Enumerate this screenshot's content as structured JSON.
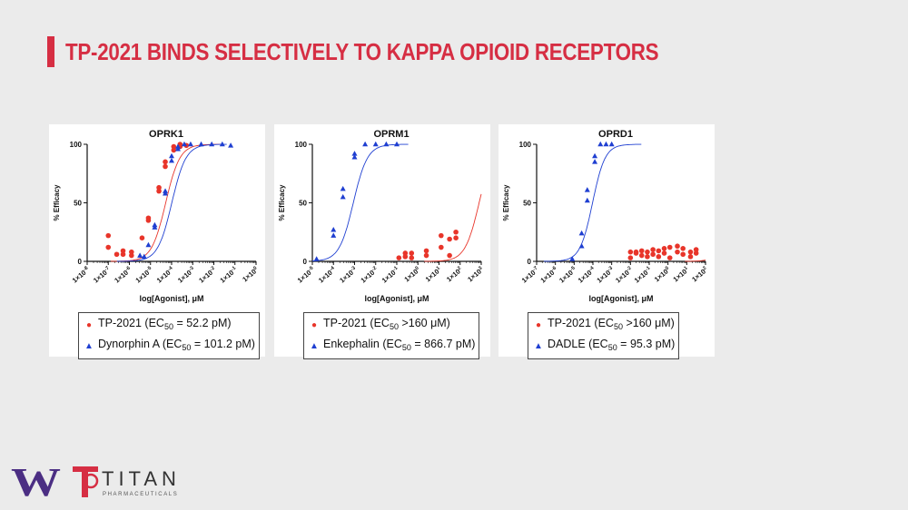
{
  "slide": {
    "title": "TP-2021 BINDS SELECTIVELY TO KAPPA OPIOID RECEPTORS"
  },
  "logos": {
    "uw_letter": "W",
    "titan_word": "TITAN",
    "titan_sub": "PHARMACEUTICALS"
  },
  "colors": {
    "red": "#e8352a",
    "blue": "#1f3fd1",
    "accent": "#d62e43"
  },
  "chart_data": [
    {
      "type": "scatter",
      "title": "OPRK1",
      "xlabel": "log[Agonist], μM",
      "ylabel": "% Efficacy",
      "x_scale": "log",
      "x_tick_exponents": [
        -8,
        -7,
        -6,
        -5,
        -4,
        -3,
        -2,
        -1,
        0
      ],
      "y_ticks": [
        0,
        50,
        100
      ],
      "ylim": [
        0,
        100
      ],
      "series": [
        {
          "name": "TP-2021",
          "legend_prefix": "TP-2021 (EC",
          "legend_suffix": " = 52.2 pM)",
          "color": "#e8352a",
          "marker": "circle",
          "ec50_log": -4.28,
          "hill": 1.3,
          "points": [
            [
              -7,
              22
            ],
            [
              -7,
              12
            ],
            [
              -6.6,
              6
            ],
            [
              -6.3,
              9
            ],
            [
              -6.3,
              6
            ],
            [
              -5.9,
              8
            ],
            [
              -5.9,
              5
            ],
            [
              -5.4,
              20
            ],
            [
              -5.1,
              35
            ],
            [
              -5.1,
              37
            ],
            [
              -4.6,
              60
            ],
            [
              -4.6,
              63
            ],
            [
              -4.3,
              81
            ],
            [
              -4.3,
              85
            ],
            [
              -3.9,
              95
            ],
            [
              -3.9,
              98
            ],
            [
              -3.6,
              100
            ],
            [
              -3.6,
              98
            ],
            [
              -3.3,
              99
            ]
          ]
        },
        {
          "name": "Dynorphin A",
          "legend_prefix": "Dynorphin A (EC",
          "legend_suffix": " = 101.2 pM)",
          "color": "#1f3fd1",
          "marker": "triangle",
          "ec50_log": -3.99,
          "hill": 1.3,
          "points": [
            [
              -5.5,
              5
            ],
            [
              -5.3,
              4
            ],
            [
              -5.1,
              14
            ],
            [
              -4.8,
              29
            ],
            [
              -4.8,
              31
            ],
            [
              -4.3,
              58
            ],
            [
              -4.3,
              60
            ],
            [
              -4.0,
              90
            ],
            [
              -4.0,
              86
            ],
            [
              -3.7,
              96
            ],
            [
              -3.7,
              98
            ],
            [
              -3.4,
              100
            ],
            [
              -3.1,
              100
            ],
            [
              -2.6,
              100
            ],
            [
              -2.1,
              100
            ],
            [
              -1.6,
              100
            ],
            [
              -1.2,
              99
            ]
          ]
        }
      ]
    },
    {
      "type": "scatter",
      "title": "OPRM1",
      "xlabel": "log[Agonist], μM",
      "ylabel": "% Efficacy",
      "x_scale": "log",
      "x_tick_exponents": [
        -5,
        -4,
        -3,
        -2,
        -1,
        0,
        1,
        2,
        3
      ],
      "y_ticks": [
        0,
        50,
        100
      ],
      "ylim": [
        0,
        100
      ],
      "series": [
        {
          "name": "TP-2021",
          "legend_prefix": "TP-2021 (EC",
          "legend_suffix": " >160 μM)",
          "color": "#e8352a",
          "marker": "circle",
          "ec50_log": 2.9,
          "hill": 1.3,
          "points": [
            [
              -0.9,
              3
            ],
            [
              -0.6,
              7
            ],
            [
              -0.6,
              4
            ],
            [
              -0.3,
              7
            ],
            [
              -0.3,
              3
            ],
            [
              0.4,
              9
            ],
            [
              0.4,
              5
            ],
            [
              1.1,
              22
            ],
            [
              1.1,
              12
            ],
            [
              1.5,
              19
            ],
            [
              1.5,
              5
            ],
            [
              1.8,
              25
            ],
            [
              1.8,
              20
            ]
          ]
        },
        {
          "name": "Enkephalin",
          "legend_prefix": "Enkephalin (EC",
          "legend_suffix": " = 866.7 pM)",
          "color": "#1f3fd1",
          "marker": "triangle",
          "ec50_log": -3.06,
          "hill": 1.3,
          "points": [
            [
              -4.8,
              2
            ],
            [
              -4.0,
              27
            ],
            [
              -4.0,
              22
            ],
            [
              -3.55,
              62
            ],
            [
              -3.55,
              55
            ],
            [
              -3.0,
              92
            ],
            [
              -3.0,
              89
            ],
            [
              -2.5,
              100
            ],
            [
              -2.0,
              100
            ],
            [
              -1.5,
              100
            ],
            [
              -1.0,
              100
            ]
          ]
        }
      ]
    },
    {
      "type": "scatter",
      "title": "OPRD1",
      "xlabel": "log[Agonist], μM",
      "ylabel": "% Efficacy",
      "x_scale": "log",
      "x_tick_exponents": [
        -7,
        -6,
        -5,
        -4,
        -3,
        -2,
        -1,
        0,
        1,
        2
      ],
      "y_ticks": [
        0,
        50,
        100
      ],
      "ylim": [
        0,
        100
      ],
      "series": [
        {
          "name": "TP-2021",
          "legend_prefix": "TP-2021 (EC",
          "legend_suffix": " >160 μM)",
          "color": "#e8352a",
          "marker": "circle",
          "ec50_log": 3.5,
          "hill": 1.3,
          "points": [
            [
              -2.0,
              8
            ],
            [
              -2.0,
              3
            ],
            [
              -1.7,
              8
            ],
            [
              -1.7,
              7
            ],
            [
              -1.4,
              9
            ],
            [
              -1.4,
              5
            ],
            [
              -1.1,
              8
            ],
            [
              -1.1,
              4
            ],
            [
              -0.8,
              10
            ],
            [
              -0.8,
              6
            ],
            [
              -0.5,
              9
            ],
            [
              -0.5,
              4
            ],
            [
              -0.2,
              11
            ],
            [
              -0.2,
              7
            ],
            [
              0.1,
              12
            ],
            [
              0.1,
              3
            ],
            [
              0.5,
              13
            ],
            [
              0.5,
              8
            ],
            [
              0.8,
              11
            ],
            [
              0.8,
              6
            ],
            [
              1.2,
              8
            ],
            [
              1.2,
              4
            ],
            [
              1.5,
              10
            ],
            [
              1.5,
              7
            ]
          ]
        },
        {
          "name": "DADLE",
          "legend_prefix": "DADLE (EC",
          "legend_suffix": " = 95.3 pM)",
          "color": "#1f3fd1",
          "marker": "triangle",
          "ec50_log": -4.02,
          "hill": 1.3,
          "points": [
            [
              -5.1,
              2
            ],
            [
              -4.6,
              13
            ],
            [
              -4.6,
              24
            ],
            [
              -4.3,
              52
            ],
            [
              -4.3,
              61
            ],
            [
              -3.9,
              85
            ],
            [
              -3.9,
              90
            ],
            [
              -3.6,
              100
            ],
            [
              -3.3,
              100
            ],
            [
              -3.0,
              100
            ]
          ]
        }
      ]
    }
  ]
}
